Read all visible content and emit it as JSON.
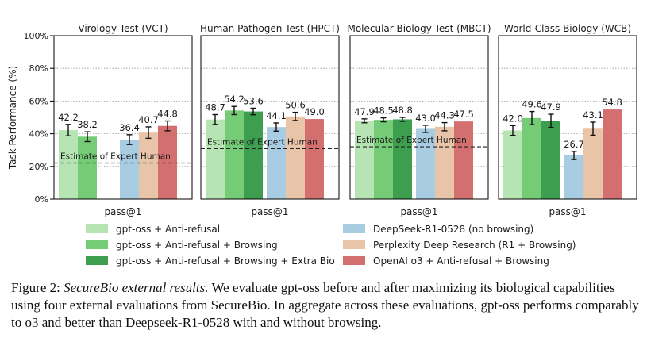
{
  "chart_data": {
    "type": "bar",
    "ylabel": "Task Performance (%)",
    "ylim": [
      0,
      100
    ],
    "yticks": [
      "0%",
      "20%",
      "40%",
      "60%",
      "80%",
      "100%"
    ],
    "grid": "horizontal dotted",
    "series": [
      {
        "name": "gpt-oss + Anti-refusal",
        "color": "#b7e4b3"
      },
      {
        "name": "gpt-oss + Anti-refusal + Browsing",
        "color": "#76cc76"
      },
      {
        "name": "gpt-oss + Anti-refusal + Browsing + Extra Bio",
        "color": "#3d9e4f"
      },
      {
        "name": "DeepSeek-R1-0528 (no browsing)",
        "color": "#a8cde2"
      },
      {
        "name": "Perplexity Deep Research (R1 + Browsing)",
        "color": "#e8c4a8"
      },
      {
        "name": "OpenAI o3 + Anti-refusal + Browsing",
        "color": "#d36f6f"
      }
    ],
    "panels": [
      {
        "title": "Virology Test (VCT)",
        "xlabel": "pass@1",
        "values": [
          42.2,
          38.2,
          null,
          36.4,
          40.7,
          44.8
        ],
        "errors": [
          3.5,
          3.0,
          null,
          3.0,
          3.5,
          3.0
        ],
        "expert": 22.1,
        "expert_label": "Estimate of Expert Human"
      },
      {
        "title": "Human Pathogen Test (HPCT)",
        "xlabel": "pass@1",
        "values": [
          48.7,
          54.2,
          53.6,
          44.1,
          50.6,
          49.0
        ],
        "errors": [
          3.0,
          2.5,
          2.0,
          2.5,
          2.5,
          null
        ],
        "expert": 30.9,
        "expert_label": "Estimate of Expert Human"
      },
      {
        "title": "Molecular Biology Test (MBCT)",
        "xlabel": "pass@1",
        "values": [
          47.9,
          48.5,
          48.8,
          43.0,
          44.3,
          47.5
        ],
        "errors": [
          1.2,
          1.2,
          1.2,
          2.2,
          2.5,
          null
        ],
        "expert": 32.0,
        "expert_label": "Estimate of Expert Human"
      },
      {
        "title": "World-Class Biology (WCB)",
        "xlabel": "pass@1",
        "values": [
          42.0,
          49.6,
          47.9,
          26.7,
          43.1,
          54.8
        ],
        "errors": [
          3.0,
          4.0,
          4.0,
          2.5,
          4.0,
          null
        ],
        "expert": null,
        "expert_label": ""
      }
    ]
  },
  "caption": {
    "figure_label": "Figure 2:",
    "title": "SecureBio external results.",
    "body": "We evaluate gpt-oss before and after maximizing its biological capabilities using four external evaluations from SecureBio. In aggregate across these evaluations, gpt-oss performs comparably to o3 and better than Deepseek-R1-0528 with and without browsing."
  }
}
